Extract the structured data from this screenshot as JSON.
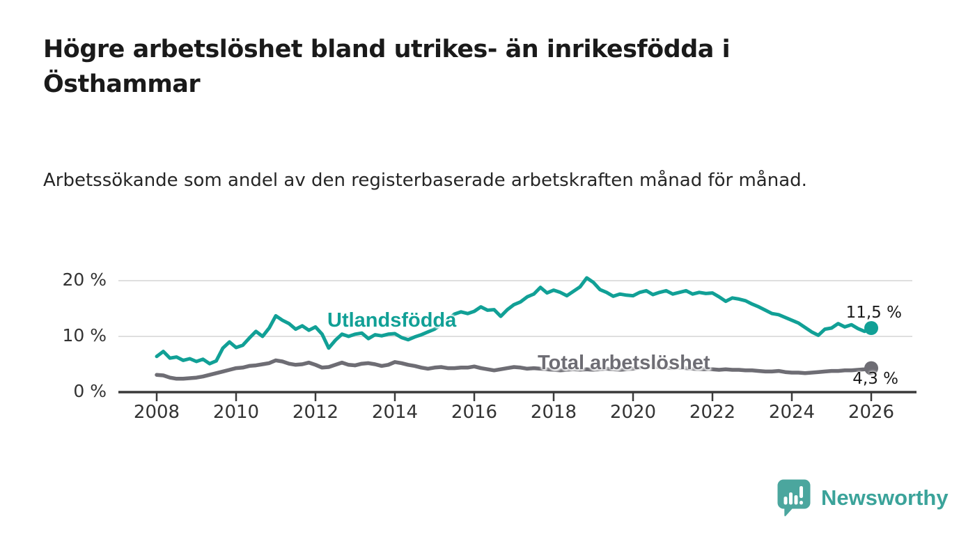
{
  "chart_data": {
    "type": "line",
    "title": "Högre arbetslöshet bland utrikes- än inrikesfödda i Östhammar",
    "subtitle": "Arbetssökande som andel av den registerbaserade arbetskraften månad för månad.",
    "x_ticks": [
      2008,
      2010,
      2012,
      2014,
      2016,
      2018,
      2020,
      2022,
      2024,
      2026
    ],
    "y_ticks": [
      {
        "value": 0,
        "label": "0 %"
      },
      {
        "value": 10,
        "label": "10 %"
      },
      {
        "value": 20,
        "label": "20 %"
      }
    ],
    "xlim": [
      2007.0,
      2027.1
    ],
    "ylim": [
      0,
      22.5
    ],
    "grid": "horizontal",
    "legend": "inline-labels",
    "x_unit": "year (monthly data)",
    "y_unit": "percent",
    "series": [
      {
        "name": "Utlandsfödda",
        "color": "#11a096",
        "line_width": 5,
        "end_dot": true,
        "end_label": "11,5 %",
        "x_start": 2008.0,
        "x_step_years": 0.16667,
        "values": [
          6.4,
          7.3,
          6.1,
          6.3,
          5.7,
          6.0,
          5.5,
          5.9,
          5.1,
          5.6,
          7.9,
          9.0,
          8.0,
          8.4,
          9.7,
          10.9,
          10.0,
          11.5,
          13.7,
          12.9,
          12.3,
          11.3,
          11.9,
          11.1,
          11.7,
          10.4,
          7.9,
          9.3,
          10.4,
          10.0,
          10.4,
          10.6,
          9.6,
          10.3,
          10.1,
          10.4,
          10.5,
          9.8,
          9.4,
          9.9,
          10.3,
          10.8,
          11.3,
          12.1,
          13.0,
          14.0,
          14.4,
          14.1,
          14.5,
          15.3,
          14.7,
          14.8,
          13.6,
          14.8,
          15.7,
          16.2,
          17.1,
          17.6,
          18.8,
          17.8,
          18.3,
          17.9,
          17.3,
          18.1,
          18.9,
          20.5,
          19.7,
          18.4,
          17.9,
          17.2,
          17.6,
          17.4,
          17.3,
          17.9,
          18.2,
          17.5,
          17.9,
          18.2,
          17.6,
          17.9,
          18.2,
          17.6,
          17.9,
          17.7,
          17.8,
          17.1,
          16.3,
          16.9,
          16.7,
          16.4,
          15.8,
          15.3,
          14.7,
          14.1,
          13.9,
          13.4,
          12.9,
          12.4,
          11.6,
          10.8,
          10.2,
          11.3,
          11.5,
          12.3,
          11.7,
          12.1,
          11.4,
          10.9,
          11.5
        ]
      },
      {
        "name": "Total arbetslöshet",
        "color": "#6e6d74",
        "line_width": 5.5,
        "end_dot": true,
        "end_label": "4,3 %",
        "x_start": 2008.0,
        "x_step_years": 0.16667,
        "values": [
          3.1,
          3.0,
          2.6,
          2.4,
          2.4,
          2.5,
          2.6,
          2.8,
          3.1,
          3.4,
          3.7,
          4.0,
          4.3,
          4.4,
          4.7,
          4.8,
          5.0,
          5.2,
          5.7,
          5.5,
          5.1,
          4.9,
          5.0,
          5.3,
          4.9,
          4.4,
          4.5,
          4.9,
          5.3,
          4.9,
          4.8,
          5.1,
          5.2,
          5.0,
          4.7,
          4.9,
          5.4,
          5.2,
          4.9,
          4.7,
          4.4,
          4.2,
          4.4,
          4.5,
          4.3,
          4.3,
          4.4,
          4.4,
          4.6,
          4.3,
          4.1,
          3.9,
          4.1,
          4.3,
          4.5,
          4.4,
          4.2,
          4.3,
          4.2,
          4.1,
          4.0,
          3.9,
          4.0,
          4.1,
          4.0,
          4.1,
          4.0,
          4.1,
          4.2,
          4.1,
          4.0,
          4.1,
          4.2,
          4.4,
          4.7,
          4.6,
          4.5,
          4.4,
          4.3,
          4.4,
          4.3,
          4.2,
          4.1,
          4.1,
          4.1,
          4.0,
          4.1,
          4.0,
          4.0,
          3.9,
          3.9,
          3.8,
          3.7,
          3.7,
          3.8,
          3.6,
          3.5,
          3.5,
          3.4,
          3.5,
          3.6,
          3.7,
          3.8,
          3.8,
          3.9,
          3.9,
          4.0,
          4.1,
          4.3
        ]
      }
    ],
    "colors": {
      "gridline": "#dfdfdf",
      "axis": "#3a3a3a",
      "tick_label": "#333333",
      "end_label": "#1a1a1a"
    }
  },
  "branding": {
    "logo_text": "Newsworthy",
    "logo_text_color": "#3ba39a",
    "icon": "newsworthy-speech-bubble-bar-chart-icon",
    "icon_color": "#4ba69e"
  }
}
